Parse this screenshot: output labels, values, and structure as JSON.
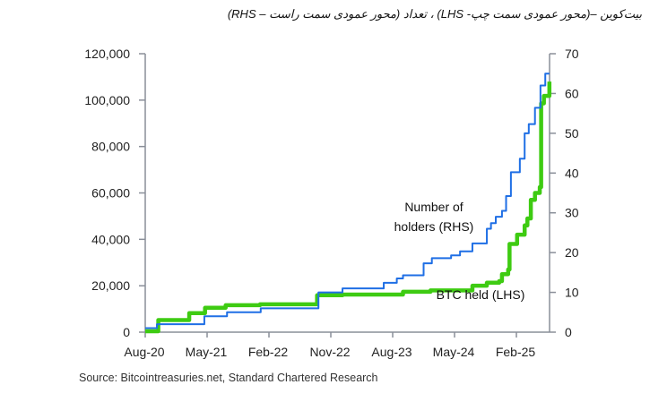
{
  "title": "بیت‌کوین –(محور عمودی سمت چپ- LHS) ، تعداد (محور عمودی سمت راست – RHS)",
  "source": "Source: Bitcointreasuries.net, Standard Chartered Research",
  "chart_data": {
    "type": "line",
    "x_unit": "months since Aug-20",
    "xlim": [
      0,
      58.8
    ],
    "x_ticks": [
      {
        "label": "Aug-20",
        "x": 0
      },
      {
        "label": "May-21",
        "x": 9
      },
      {
        "label": "Feb-22",
        "x": 18
      },
      {
        "label": "Nov-22",
        "x": 27
      },
      {
        "label": "Aug-23",
        "x": 36
      },
      {
        "label": "May-24",
        "x": 45
      },
      {
        "label": "Feb-25",
        "x": 54
      }
    ],
    "y_left": {
      "lim": [
        0,
        120000
      ],
      "ticks": [
        "0",
        "20,000",
        "40,000",
        "60,000",
        "80,000",
        "100,000",
        "120,000"
      ],
      "tick_values": [
        0,
        20000,
        40000,
        60000,
        80000,
        100000,
        120000
      ]
    },
    "y_right": {
      "lim": [
        0,
        70
      ],
      "ticks": [
        "0",
        "10",
        "20",
        "30",
        "40",
        "50",
        "60",
        "70"
      ],
      "tick_values": [
        0,
        10,
        20,
        30,
        40,
        50,
        60,
        70
      ]
    },
    "series": [
      {
        "name": "Number of holders (RHS)",
        "label_lines": [
          "Number of",
          "holders (RHS)"
        ],
        "axis": "right",
        "color": "#1f6fe5",
        "points": [
          [
            0,
            1
          ],
          [
            1.7,
            2
          ],
          [
            8.6,
            4
          ],
          [
            11.9,
            5
          ],
          [
            16.8,
            6
          ],
          [
            25.2,
            10
          ],
          [
            28.7,
            11
          ],
          [
            34.7,
            12.4
          ],
          [
            36.6,
            13.5
          ],
          [
            37.5,
            14.3
          ],
          [
            40.5,
            17.3
          ],
          [
            41.7,
            18.6
          ],
          [
            44.5,
            19.3
          ],
          [
            45.8,
            20.3
          ],
          [
            47.6,
            22.3
          ],
          [
            49.7,
            26
          ],
          [
            50.3,
            27.4
          ],
          [
            51,
            29
          ],
          [
            51.9,
            30.5
          ],
          [
            52.5,
            34.2
          ],
          [
            53.2,
            40.2
          ],
          [
            54.5,
            43.6
          ],
          [
            55.2,
            50
          ],
          [
            55.8,
            52.3
          ],
          [
            56.7,
            56.4
          ],
          [
            57.5,
            62
          ],
          [
            58.2,
            65
          ],
          [
            58.8,
            65
          ]
        ]
      },
      {
        "name": "BTC held (LHS)",
        "label_lines": [
          "BTC held (LHS)"
        ],
        "axis": "left",
        "color": "#3ecb12",
        "points": [
          [
            0,
            400
          ],
          [
            1.9,
            5200
          ],
          [
            6.4,
            8200
          ],
          [
            8.7,
            10500
          ],
          [
            11.7,
            11600
          ],
          [
            16.7,
            12000
          ],
          [
            25,
            15900
          ],
          [
            28.7,
            16200
          ],
          [
            37.5,
            17400
          ],
          [
            41.5,
            18000
          ],
          [
            47.6,
            20000
          ],
          [
            49.7,
            21300
          ],
          [
            51.5,
            22000
          ],
          [
            51.9,
            25000
          ],
          [
            52.8,
            27000
          ],
          [
            53,
            38000
          ],
          [
            54.1,
            42000
          ],
          [
            55.2,
            46000
          ],
          [
            55.6,
            49000
          ],
          [
            56.1,
            57000
          ],
          [
            56.7,
            60000
          ],
          [
            57.4,
            62500
          ],
          [
            57.6,
            98600
          ],
          [
            58,
            101800
          ],
          [
            58.8,
            108000
          ]
        ]
      }
    ]
  }
}
